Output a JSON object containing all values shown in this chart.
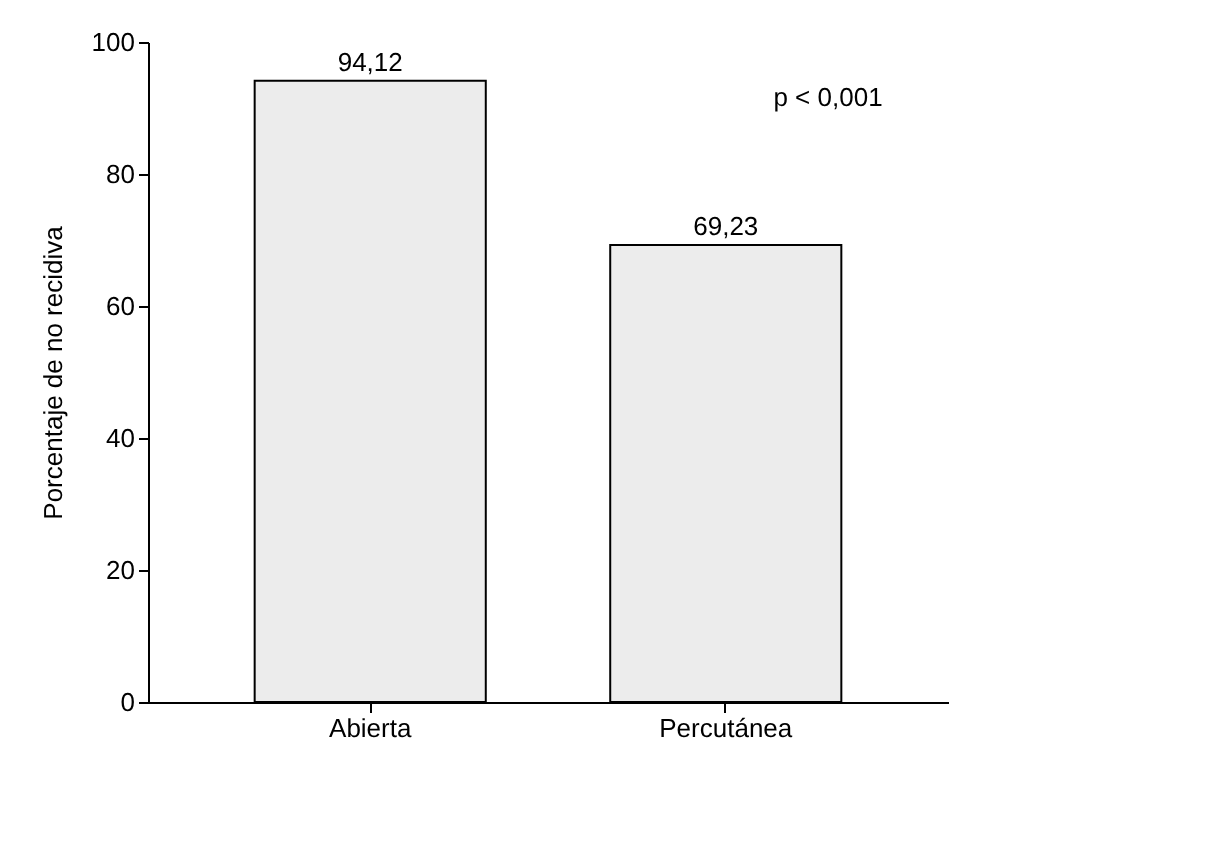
{
  "chart_data": {
    "type": "bar",
    "ylabel": "Porcentaje de no recidiva",
    "categories": [
      "Abierta",
      "Percutánea"
    ],
    "values": [
      94.12,
      69.23
    ],
    "value_labels": [
      "94,12",
      "69,23"
    ],
    "color": "#ececec",
    "ylim": [
      0,
      100
    ],
    "yticks": [
      0,
      20,
      40,
      60,
      80,
      100
    ],
    "grid": false,
    "annotations": [
      "p < 0,001"
    ]
  }
}
